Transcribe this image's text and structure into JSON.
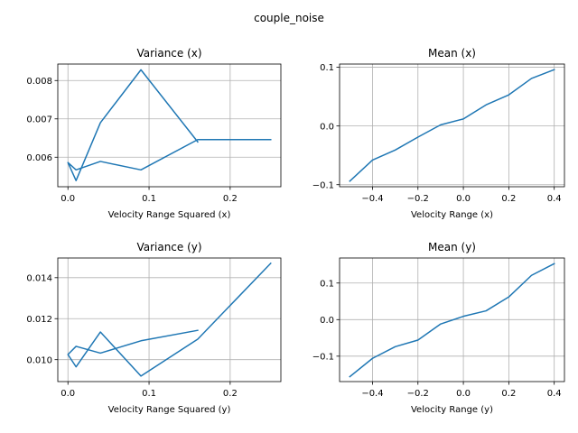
{
  "suptitle": "couple_noise",
  "chart_data": [
    {
      "type": "line",
      "title": "Variance (x)",
      "xlabel": "Velocity Range Squared (x)",
      "ylabel": "",
      "grid": true,
      "color": "#1f77b4",
      "xlim": [
        -0.0125,
        0.2625
      ],
      "ylim": [
        0.00523,
        0.00843
      ],
      "xticks": [
        0.0,
        0.1,
        0.2
      ],
      "xtick_labels": [
        "0.0",
        "0.1",
        "0.2"
      ],
      "yticks": [
        0.006,
        0.007,
        0.008
      ],
      "ytick_labels": [
        "0.006",
        "0.007",
        "0.008"
      ],
      "x": [
        0.25,
        0.16,
        0.09,
        0.04,
        0.01,
        0.0,
        0.01,
        0.04,
        0.09,
        0.16
      ],
      "y": [
        0.00646,
        0.00646,
        0.00567,
        0.00589,
        0.00567,
        0.00586,
        0.00539,
        0.0069,
        0.00828,
        0.0064
      ]
    },
    {
      "type": "line",
      "title": "Mean (x)",
      "xlabel": "Velocity Range (x)",
      "ylabel": "",
      "grid": true,
      "color": "#1f77b4",
      "xlim": [
        -0.545,
        0.445
      ],
      "ylim": [
        -0.1035,
        0.1055
      ],
      "xticks": [
        -0.4,
        -0.2,
        0.0,
        0.2,
        0.4
      ],
      "xtick_labels": [
        "−0.4",
        "−0.2",
        "0.0",
        "0.2",
        "0.4"
      ],
      "yticks": [
        -0.1,
        0.0,
        0.1
      ],
      "ytick_labels": [
        "−0.1",
        "0.0",
        "0.1"
      ],
      "x": [
        -0.5,
        -0.4,
        -0.3,
        -0.2,
        -0.1,
        0.0,
        0.1,
        0.2,
        0.3,
        0.4
      ],
      "y": [
        -0.094,
        -0.058,
        -0.041,
        -0.019,
        0.002,
        0.012,
        0.036,
        0.053,
        0.081,
        0.096
      ]
    },
    {
      "type": "line",
      "title": "Variance (y)",
      "xlabel": "Velocity Range Squared (y)",
      "ylabel": "",
      "grid": true,
      "color": "#1f77b4",
      "xlim": [
        -0.0125,
        0.2625
      ],
      "ylim": [
        0.00893,
        0.01496
      ],
      "xticks": [
        0.0,
        0.1,
        0.2
      ],
      "xtick_labels": [
        "0.0",
        "0.1",
        "0.2"
      ],
      "yticks": [
        0.01,
        0.012,
        0.014
      ],
      "ytick_labels": [
        "0.010",
        "0.012",
        "0.014"
      ],
      "x": [
        0.25,
        0.16,
        0.09,
        0.04,
        0.01,
        0.0,
        0.01,
        0.04,
        0.09,
        0.16
      ],
      "y": [
        0.0147,
        0.011,
        0.0092,
        0.01135,
        0.00965,
        0.01025,
        0.01065,
        0.01032,
        0.01092,
        0.01143
      ]
    },
    {
      "type": "line",
      "title": "Mean (y)",
      "xlabel": "Velocity Range (y)",
      "ylabel": "",
      "grid": true,
      "color": "#1f77b4",
      "xlim": [
        -0.545,
        0.445
      ],
      "ylim": [
        -0.1695,
        0.1685
      ],
      "xticks": [
        -0.4,
        -0.2,
        0.0,
        0.2,
        0.4
      ],
      "xtick_labels": [
        "−0.4",
        "−0.2",
        "0.0",
        "0.2",
        "0.4"
      ],
      "yticks": [
        -0.1,
        0.0,
        0.1
      ],
      "ytick_labels": [
        "−0.1",
        "0.0",
        "0.1"
      ],
      "x": [
        -0.5,
        -0.4,
        -0.3,
        -0.2,
        -0.1,
        0.0,
        0.1,
        0.2,
        0.3,
        0.4
      ],
      "y": [
        -0.156,
        -0.106,
        -0.074,
        -0.056,
        -0.012,
        0.009,
        0.024,
        0.062,
        0.121,
        0.153
      ]
    }
  ]
}
